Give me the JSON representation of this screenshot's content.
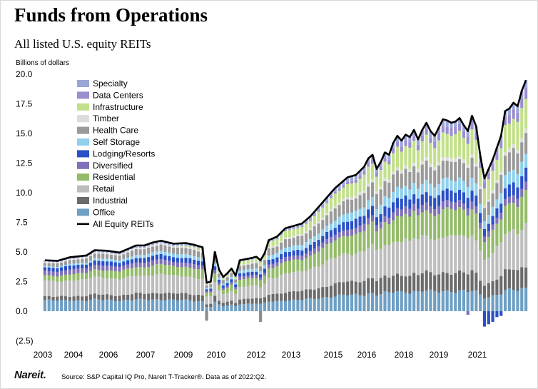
{
  "title": "Funds from Operations",
  "subtitle": "All listed U.S. equity REITs",
  "footer": {
    "logo": "Nareit.",
    "source": "Source: S&P Capital IQ Pro, Nareit T-Tracker®. Data as of 2022:Q2."
  },
  "chart_data": {
    "type": "bar",
    "stacked": true,
    "ylabel": "Billions of dollars",
    "ylim": [
      -2.5,
      20
    ],
    "yticks": [
      "20.0",
      "17.5",
      "15.0",
      "12.5",
      "10.0",
      "7.5",
      "5.0",
      "2.5",
      "0.0",
      "(2.5)"
    ],
    "ytick_values": [
      20,
      17.5,
      15,
      12.5,
      10,
      7.5,
      5,
      2.5,
      0,
      -2.5
    ],
    "xticks": [
      "2003",
      "2004",
      "2006",
      "2007",
      "2009",
      "2010",
      "2012",
      "2013",
      "2015",
      "2016",
      "2018",
      "2019",
      "2021"
    ],
    "legend_position": "top-left",
    "series": [
      {
        "name": "Specialty",
        "color": "#9aa6d6",
        "base": 0.15,
        "end": 0.6
      },
      {
        "name": "Data Centers",
        "color": "#9b8ed0",
        "base": 0.0,
        "end": 0.9
      },
      {
        "name": "Infrastructure",
        "color": "#c2e08a",
        "base": 0.0,
        "end": 2.6
      },
      {
        "name": "Timber",
        "color": "#dcdcdc",
        "base": 0.1,
        "end": 0.35
      },
      {
        "name": "Health Care",
        "color": "#9a9a9a",
        "base": 0.3,
        "end": 1.9
      },
      {
        "name": "Self Storage",
        "color": "#8ed0ee",
        "base": 0.1,
        "end": 1.2
      },
      {
        "name": "Lodging/Resorts",
        "color": "#2a4fc6",
        "base": 0.35,
        "end": 1.1
      },
      {
        "name": "Diversified",
        "color": "#8070b8",
        "base": 0.45,
        "end": 0.7
      },
      {
        "name": "Residential",
        "color": "#94bb6a",
        "base": 0.5,
        "end": 2.7
      },
      {
        "name": "Retail",
        "color": "#bdbdbd",
        "base": 1.5,
        "end": 3.6
      },
      {
        "name": "Industrial",
        "color": "#6b6b6b",
        "base": 0.35,
        "end": 1.9
      },
      {
        "name": "Office",
        "color": "#6e9fc4",
        "base": 1.05,
        "end": 1.95
      }
    ],
    "line_series": {
      "name": "All Equity REITs",
      "color": "#000000",
      "points": [
        [
          0,
          4.3
        ],
        [
          3,
          4.25
        ],
        [
          6,
          4.55
        ],
        [
          10,
          4.7
        ],
        [
          12,
          5.15
        ],
        [
          15,
          5.1
        ],
        [
          18,
          4.95
        ],
        [
          22,
          5.55
        ],
        [
          24,
          5.55
        ],
        [
          26,
          5.8
        ],
        [
          28,
          5.95
        ],
        [
          31,
          5.7
        ],
        [
          34,
          5.75
        ],
        [
          36,
          5.6
        ],
        [
          38,
          5.4
        ],
        [
          39,
          2.4
        ],
        [
          40,
          2.5
        ],
        [
          41,
          5.0
        ],
        [
          42,
          3.5
        ],
        [
          43,
          2.9
        ],
        [
          44,
          3.2
        ],
        [
          45,
          3.6
        ],
        [
          46,
          3.0
        ],
        [
          47,
          4.3
        ],
        [
          50,
          4.5
        ],
        [
          51,
          4.6
        ],
        [
          52,
          4.3
        ],
        [
          53,
          4.9
        ],
        [
          54,
          6.0
        ],
        [
          56,
          6.3
        ],
        [
          58,
          7.0
        ],
        [
          60,
          7.2
        ],
        [
          62,
          7.4
        ],
        [
          64,
          8.0
        ],
        [
          66,
          8.8
        ],
        [
          68,
          9.6
        ],
        [
          70,
          10.4
        ],
        [
          72,
          11.0
        ],
        [
          73,
          11.3
        ],
        [
          75,
          11.5
        ],
        [
          77,
          12.2
        ],
        [
          78,
          12.9
        ],
        [
          79,
          13.2
        ],
        [
          80,
          12.0
        ],
        [
          81,
          12.6
        ],
        [
          82,
          13.4
        ],
        [
          83,
          13.2
        ],
        [
          84,
          14.2
        ],
        [
          85,
          14.8
        ],
        [
          86,
          14.4
        ],
        [
          87,
          14.9
        ],
        [
          88,
          14.7
        ],
        [
          89,
          15.3
        ],
        [
          90,
          14.5
        ],
        [
          91,
          15.3
        ],
        [
          92,
          15.9
        ],
        [
          93,
          15.2
        ],
        [
          94,
          14.8
        ],
        [
          95,
          15.5
        ],
        [
          96,
          16.2
        ],
        [
          97,
          16.1
        ],
        [
          98,
          15.9
        ],
        [
          99,
          16.0
        ],
        [
          100,
          16.3
        ],
        [
          101,
          15.7
        ],
        [
          102,
          15.2
        ],
        [
          103,
          16.5
        ],
        [
          104,
          15.6
        ],
        [
          105,
          13.1
        ],
        [
          106,
          11.2
        ],
        [
          107,
          12.0
        ],
        [
          108,
          12.8
        ],
        [
          109,
          13.8
        ],
        [
          110,
          14.8
        ],
        [
          111,
          16.9
        ],
        [
          112,
          17.1
        ],
        [
          113,
          17.6
        ],
        [
          114,
          17.3
        ],
        [
          115,
          18.6
        ],
        [
          116,
          19.5
        ]
      ]
    }
  }
}
